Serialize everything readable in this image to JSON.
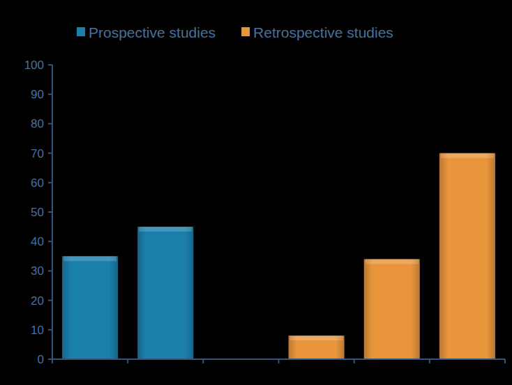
{
  "chart_data": {
    "type": "bar",
    "categories": [
      null,
      null,
      null,
      null,
      null,
      null
    ],
    "series": [
      {
        "name": "Prospective studies",
        "color": "#1b7fab",
        "values": [
          35,
          45,
          null,
          null,
          null,
          null
        ]
      },
      {
        "name": "Retrospective studies",
        "color": "#e8953c",
        "values": [
          null,
          null,
          null,
          8,
          34,
          70
        ]
      }
    ],
    "ylim": [
      0,
      100
    ],
    "yticks": [
      0,
      10,
      20,
      30,
      40,
      50,
      60,
      70,
      80,
      90,
      100
    ],
    "grid": false,
    "legend": "top",
    "tick_labels": "y"
  }
}
